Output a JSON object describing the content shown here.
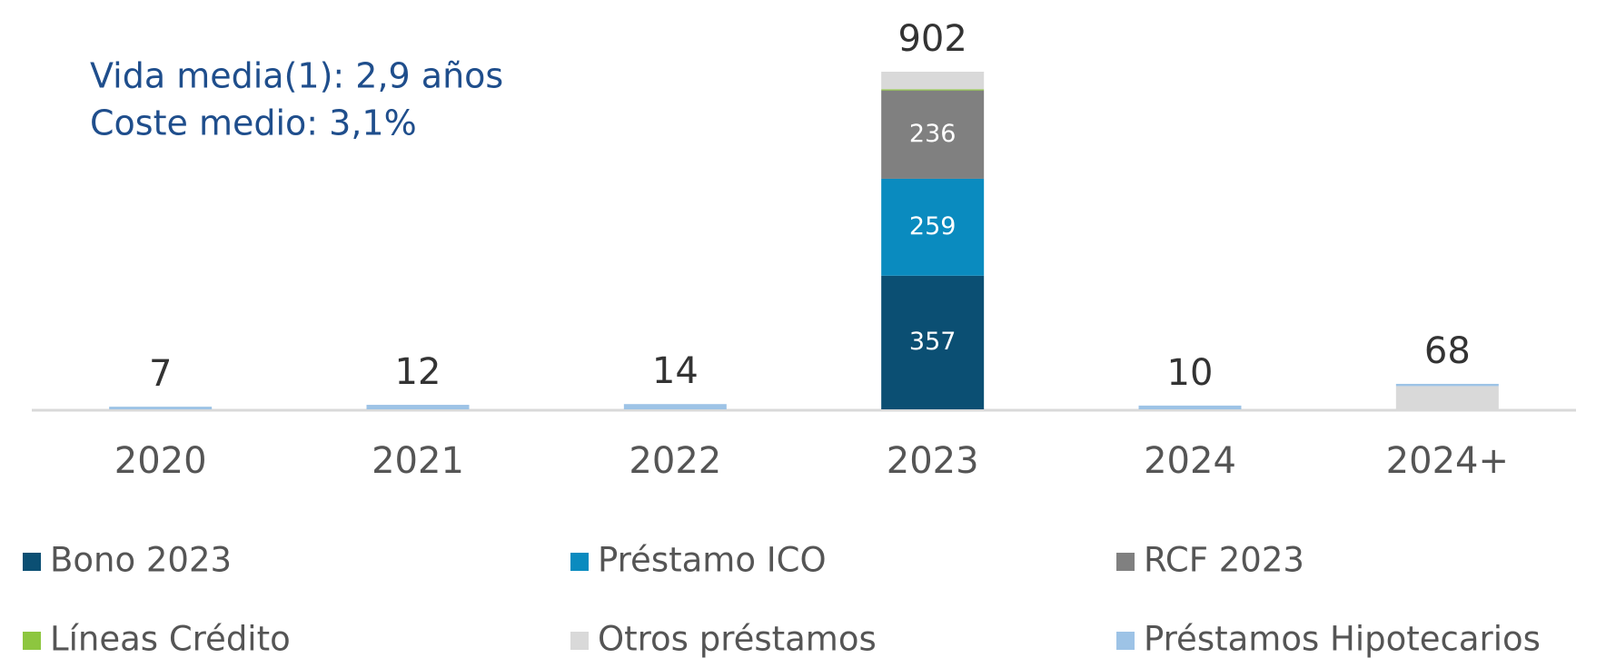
{
  "chart_data": {
    "type": "stacked_bar",
    "annotations": [
      "Vida media(1): 2,9 años",
      "Coste medio: 3,1%"
    ],
    "categories": [
      "2020",
      "2021",
      "2022",
      "2023",
      "2024",
      "2024+"
    ],
    "totals": [
      7,
      12,
      14,
      902,
      10,
      68
    ],
    "series": [
      {
        "name": "Bono 2023",
        "color": "#0b4f73",
        "values": [
          null,
          null,
          null,
          357,
          null,
          null
        ]
      },
      {
        "name": "Préstamo ICO",
        "color": "#0a8bbf",
        "values": [
          null,
          null,
          null,
          259,
          null,
          null
        ]
      },
      {
        "name": "RCF 2023",
        "color": "#808080",
        "values": [
          null,
          null,
          null,
          236,
          null,
          null
        ]
      },
      {
        "name": "Líneas Crédito",
        "color": "#8dc63f",
        "values": [
          null,
          null,
          null,
          3,
          null,
          null
        ]
      },
      {
        "name": "Otros préstamos",
        "color": "#d9d9d9",
        "values": [
          null,
          null,
          null,
          47,
          null,
          62
        ]
      },
      {
        "name": "Préstamos Hipotecarios",
        "color": "#9dc3e6",
        "values": [
          7,
          12,
          14,
          null,
          10,
          6
        ]
      }
    ]
  }
}
